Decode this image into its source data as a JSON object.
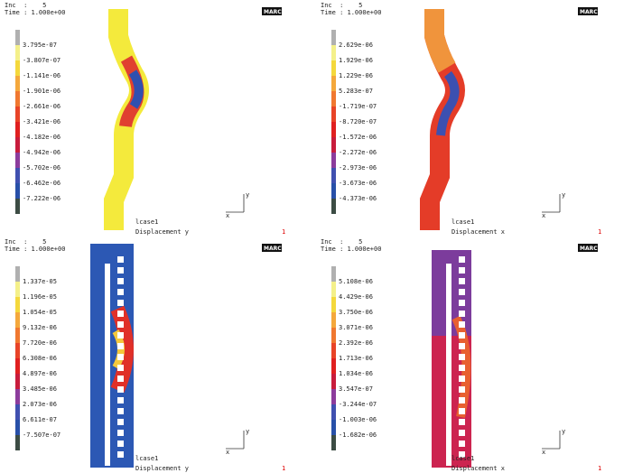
{
  "panels": [
    {
      "inc": "Inc  :    5",
      "time": "Time : 1.000e+00",
      "logo": "MARC",
      "legend": [
        "3.795e-07",
        "-3.807e-07",
        "-1.141e-06",
        "-1.901e-06",
        "-2.661e-06",
        "-3.421e-06",
        "-4.182e-06",
        "-4.942e-06",
        "-5.702e-06",
        "-6.462e-06",
        "-7.222e-06"
      ],
      "triad": [
        "y",
        "x"
      ],
      "job": "lcase1",
      "result": "Displacement y",
      "page": "1"
    },
    {
      "inc": "Inc  :    5",
      "time": "Time : 1.000e+00",
      "logo": "MARC",
      "legend": [
        "2.629e-06",
        "1.929e-06",
        "1.229e-06",
        "5.283e-07",
        "-1.719e-07",
        "-8.720e-07",
        "-1.572e-06",
        "-2.272e-06",
        "-2.973e-06",
        "-3.673e-06",
        "-4.373e-06"
      ],
      "triad": [
        "y",
        "x"
      ],
      "job": "lcase1",
      "result": "Displacement x",
      "page": "1"
    },
    {
      "inc": "Inc  :    5",
      "time": "Time : 1.000e+00",
      "logo": "MARC",
      "legend": [
        "1.337e-05",
        "1.196e-05",
        "1.054e-05",
        "9.132e-06",
        "7.720e-06",
        "6.308e-06",
        "4.897e-06",
        "3.485e-06",
        "2.073e-06",
        "6.611e-07",
        "-7.507e-07"
      ],
      "triad": [
        "y",
        "x"
      ],
      "job": "lcase1",
      "result": "Displacement y",
      "page": "1"
    },
    {
      "inc": "Inc  :    5",
      "time": "Time : 1.000e+00",
      "logo": "MARC",
      "legend": [
        "5.108e-06",
        "4.429e-06",
        "3.750e-06",
        "3.071e-06",
        "2.392e-06",
        "1.713e-06",
        "1.034e-06",
        "3.547e-07",
        "-3.244e-07",
        "-1.003e-06",
        "-1.682e-06"
      ],
      "triad": [
        "y",
        "x"
      ],
      "job": "lcase1",
      "result": "Displacement x",
      "page": "1"
    }
  ]
}
